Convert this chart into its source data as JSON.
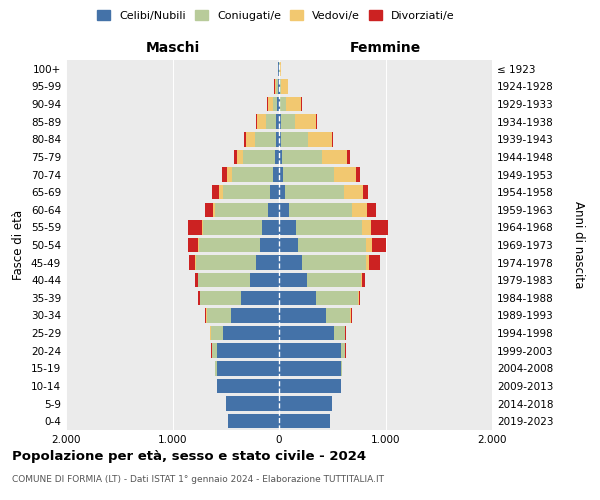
{
  "age_groups": [
    "0-4",
    "5-9",
    "10-14",
    "15-19",
    "20-24",
    "25-29",
    "30-34",
    "35-39",
    "40-44",
    "45-49",
    "50-54",
    "55-59",
    "60-64",
    "65-69",
    "70-74",
    "75-79",
    "80-84",
    "85-89",
    "90-94",
    "95-99",
    "100+"
  ],
  "birth_years": [
    "2019-2023",
    "2014-2018",
    "2009-2013",
    "2004-2008",
    "1999-2003",
    "1994-1998",
    "1989-1993",
    "1984-1988",
    "1979-1983",
    "1974-1978",
    "1969-1973",
    "1964-1968",
    "1959-1963",
    "1954-1958",
    "1949-1953",
    "1944-1948",
    "1939-1943",
    "1934-1938",
    "1929-1933",
    "1924-1928",
    "≤ 1923"
  ],
  "colors": {
    "celibi": "#4472a8",
    "coniugati": "#b8cb9a",
    "vedovi": "#f2c870",
    "divorziati": "#cc2222"
  },
  "males": {
    "celibi": [
      480,
      500,
      580,
      580,
      580,
      530,
      450,
      360,
      270,
      220,
      180,
      160,
      100,
      80,
      60,
      40,
      30,
      25,
      18,
      10,
      5
    ],
    "coniugati": [
      0,
      0,
      5,
      20,
      50,
      110,
      230,
      380,
      490,
      560,
      570,
      550,
      500,
      450,
      380,
      300,
      200,
      100,
      38,
      14,
      4
    ],
    "vedovi": [
      0,
      0,
      0,
      0,
      0,
      5,
      5,
      5,
      5,
      5,
      10,
      15,
      20,
      38,
      48,
      58,
      78,
      78,
      48,
      18,
      2
    ],
    "divorziati": [
      0,
      0,
      0,
      0,
      5,
      5,
      10,
      15,
      28,
      58,
      98,
      128,
      78,
      58,
      48,
      28,
      18,
      9,
      4,
      4,
      0
    ]
  },
  "females": {
    "nubili": [
      480,
      500,
      580,
      580,
      580,
      520,
      440,
      350,
      260,
      220,
      180,
      160,
      90,
      60,
      40,
      25,
      20,
      19,
      14,
      9,
      4
    ],
    "coniugati": [
      0,
      0,
      5,
      10,
      44,
      98,
      228,
      388,
      508,
      598,
      638,
      618,
      598,
      548,
      478,
      378,
      248,
      128,
      48,
      14,
      4
    ],
    "vedovi": [
      0,
      0,
      0,
      0,
      0,
      4,
      4,
      9,
      14,
      28,
      58,
      88,
      138,
      178,
      208,
      238,
      228,
      198,
      148,
      58,
      9
    ],
    "divorziati": [
      0,
      0,
      0,
      0,
      4,
      4,
      9,
      14,
      28,
      98,
      128,
      158,
      88,
      48,
      38,
      28,
      14,
      9,
      4,
      4,
      0
    ]
  },
  "xlim": 2000,
  "title": "Popolazione per età, sesso e stato civile - 2024",
  "subtitle": "COMUNE DI FORMIA (LT) - Dati ISTAT 1° gennaio 2024 - Elaborazione TUTTITALIA.IT",
  "xlabel_left": "Maschi",
  "xlabel_right": "Femmine",
  "ylabel_left": "Fasce di età",
  "ylabel_right": "Anni di nascita",
  "legend_labels": [
    "Celibi/Nubili",
    "Coniugati/e",
    "Vedovi/e",
    "Divorziati/e"
  ],
  "bg_color": "#ebebeb",
  "grid_color": "white"
}
